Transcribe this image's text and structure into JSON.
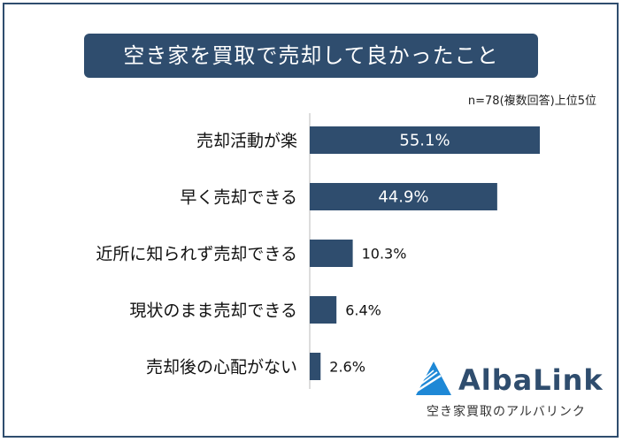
{
  "title": "空き家を買取で売却して良かったこと",
  "note": "n=78(複数回答)上位5位",
  "chart_data": {
    "type": "bar",
    "orientation": "horizontal",
    "categories": [
      "売却活動が楽",
      "早く売却できる",
      "近所に知られず売却できる",
      "現状のまま売却できる",
      "売却後の心配がない"
    ],
    "values": [
      55.1,
      44.9,
      10.3,
      6.4,
      2.6
    ],
    "value_labels": [
      "55.1%",
      "44.9%",
      "10.3%",
      "6.4%",
      "2.6%"
    ],
    "xlim": [
      0,
      55.1
    ],
    "bar_color": "#2f4d6e"
  },
  "logo": {
    "name": "AlbaLink",
    "subtitle": "空き家買取のアルバリンク"
  }
}
